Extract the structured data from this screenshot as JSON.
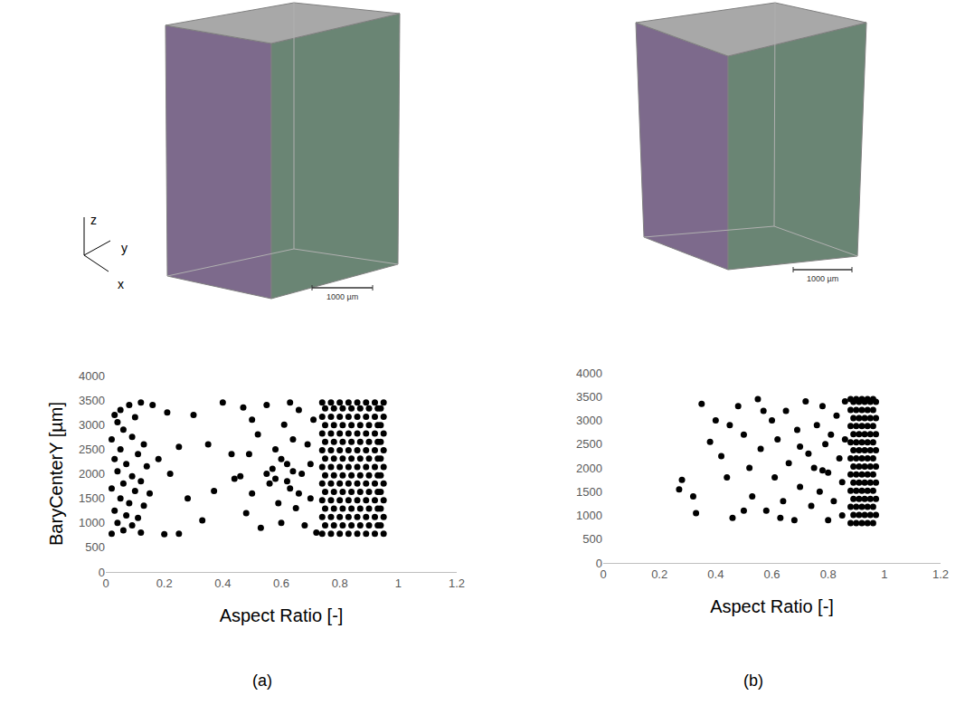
{
  "chart_data": [
    {
      "panel": "(a)",
      "type": "scatter",
      "x_label": "Aspect Ratio [-]",
      "y_label": "BaryCenterY [µm]",
      "x": [
        0.03,
        0.05,
        0.08,
        0.12,
        0.04,
        0.1,
        0.06,
        0.02,
        0.09,
        0.13,
        0.05,
        0.11,
        0.03,
        0.07,
        0.14,
        0.04,
        0.09,
        0.12,
        0.06,
        0.02,
        0.1,
        0.15,
        0.05,
        0.08,
        0.13,
        0.03,
        0.07,
        0.11,
        0.04,
        0.09,
        0.06,
        0.12,
        0.02,
        0.16,
        0.18,
        0.21,
        0.25,
        0.22,
        0.3,
        0.28,
        0.33,
        0.37,
        0.4,
        0.25,
        0.2,
        0.35,
        0.43,
        0.44,
        0.47,
        0.5,
        0.52,
        0.49,
        0.46,
        0.5,
        0.48,
        0.53,
        0.55,
        0.57,
        0.56,
        0.58,
        0.59,
        0.6,
        0.61,
        0.62,
        0.63,
        0.64,
        0.65,
        0.66,
        0.67,
        0.55,
        0.58,
        0.6,
        0.62,
        0.64,
        0.66,
        0.63,
        0.68,
        0.69,
        0.7,
        0.71,
        0.7,
        0.72,
        0.74,
        0.77,
        0.8,
        0.83,
        0.86,
        0.89,
        0.92,
        0.95,
        0.75,
        0.78,
        0.81,
        0.84,
        0.87,
        0.9,
        0.93,
        0.94,
        0.74,
        0.77,
        0.8,
        0.83,
        0.86,
        0.89,
        0.92,
        0.95,
        0.75,
        0.78,
        0.81,
        0.84,
        0.87,
        0.9,
        0.93,
        0.94,
        0.74,
        0.77,
        0.8,
        0.83,
        0.86,
        0.89,
        0.92,
        0.95,
        0.75,
        0.78,
        0.81,
        0.84,
        0.87,
        0.9,
        0.93,
        0.94,
        0.74,
        0.77,
        0.8,
        0.83,
        0.86,
        0.89,
        0.92,
        0.95,
        0.75,
        0.78,
        0.81,
        0.84,
        0.87,
        0.9,
        0.93,
        0.94,
        0.74,
        0.77,
        0.8,
        0.83,
        0.86,
        0.89,
        0.92,
        0.95,
        0.75,
        0.78,
        0.81,
        0.84,
        0.87,
        0.9,
        0.93,
        0.94,
        0.74,
        0.77,
        0.8,
        0.83,
        0.86,
        0.89,
        0.92,
        0.95,
        0.75,
        0.78,
        0.81,
        0.84,
        0.87,
        0.9,
        0.93,
        0.94,
        0.74,
        0.77,
        0.8,
        0.83,
        0.86,
        0.89,
        0.92,
        0.95,
        0.75,
        0.78,
        0.81,
        0.84,
        0.87,
        0.9,
        0.93,
        0.94,
        0.74,
        0.77,
        0.8,
        0.83,
        0.86,
        0.89,
        0.92,
        0.95,
        0.75,
        0.78,
        0.81,
        0.84,
        0.87,
        0.9,
        0.93,
        0.94,
        0.74,
        0.77,
        0.8,
        0.83,
        0.86,
        0.89,
        0.92,
        0.95
      ],
      "values": [
        3200,
        3300,
        3400,
        3450,
        3050,
        3150,
        2900,
        2700,
        2750,
        2600,
        2500,
        2400,
        2300,
        2200,
        2150,
        2050,
        1950,
        1850,
        1800,
        1700,
        1650,
        1600,
        1500,
        1400,
        1350,
        1250,
        1150,
        1100,
        1000,
        950,
        850,
        800,
        780,
        3400,
        2300,
        3250,
        2550,
        2000,
        3200,
        1500,
        1050,
        1650,
        3450,
        780,
        770,
        2600,
        2400,
        1900,
        3350,
        3100,
        2800,
        2400,
        1950,
        1600,
        1200,
        900,
        3400,
        2100,
        1800,
        2500,
        1400,
        1000,
        3000,
        2200,
        1700,
        2700,
        1300,
        3300,
        2000,
        2000,
        1900,
        2300,
        1850,
        2050,
        1600,
        3450,
        950,
        2600,
        1500,
        3100,
        2200,
        800,
        780,
        780,
        780,
        780,
        780,
        780,
        780,
        780,
        950,
        950,
        950,
        950,
        950,
        950,
        950,
        950,
        1120,
        1120,
        1120,
        1120,
        1120,
        1120,
        1120,
        1120,
        1290,
        1290,
        1290,
        1290,
        1290,
        1290,
        1290,
        1290,
        1460,
        1460,
        1460,
        1460,
        1460,
        1460,
        1460,
        1460,
        1630,
        1630,
        1630,
        1630,
        1630,
        1630,
        1630,
        1630,
        1800,
        1800,
        1800,
        1800,
        1800,
        1800,
        1800,
        1800,
        1970,
        1970,
        1970,
        1970,
        1970,
        1970,
        1970,
        1970,
        2140,
        2140,
        2140,
        2140,
        2140,
        2140,
        2140,
        2140,
        2310,
        2310,
        2310,
        2310,
        2310,
        2310,
        2310,
        2310,
        2480,
        2480,
        2480,
        2480,
        2480,
        2480,
        2480,
        2480,
        2650,
        2650,
        2650,
        2650,
        2650,
        2650,
        2650,
        2650,
        2820,
        2820,
        2820,
        2820,
        2820,
        2820,
        2820,
        2820,
        2990,
        2990,
        2990,
        2990,
        2990,
        2990,
        2990,
        2990,
        3160,
        3160,
        3160,
        3160,
        3160,
        3160,
        3160,
        3160,
        3330,
        3330,
        3330,
        3330,
        3330,
        3330,
        3330,
        3330,
        3450,
        3450,
        3450,
        3450,
        3450,
        3450,
        3450,
        3450
      ],
      "xlim": [
        0,
        1.2
      ],
      "xticks": [
        0,
        0.2,
        0.4,
        0.6,
        0.8,
        1,
        1.2
      ],
      "ylim": [
        0,
        4000
      ],
      "yticks": [
        0,
        500,
        1000,
        1500,
        2000,
        2500,
        3000,
        3500,
        4000
      ],
      "color": "#000000",
      "marker": "circle",
      "grid": false,
      "scale_bar": "1000 µm"
    },
    {
      "panel": "(b)",
      "type": "scatter",
      "x_label": "Aspect Ratio [-]",
      "x": [
        0.27,
        0.28,
        0.32,
        0.33,
        0.35,
        0.38,
        0.4,
        0.42,
        0.44,
        0.46,
        0.48,
        0.5,
        0.52,
        0.53,
        0.55,
        0.56,
        0.58,
        0.6,
        0.61,
        0.62,
        0.64,
        0.65,
        0.66,
        0.68,
        0.69,
        0.7,
        0.72,
        0.73,
        0.74,
        0.75,
        0.76,
        0.77,
        0.78,
        0.79,
        0.8,
        0.8,
        0.81,
        0.82,
        0.83,
        0.84,
        0.85,
        0.85,
        0.86,
        0.86,
        0.5,
        0.45,
        0.57,
        0.63,
        0.7,
        0.78,
        0.88,
        0.9,
        0.92,
        0.94,
        0.96,
        0.89,
        0.91,
        0.93,
        0.95,
        0.97,
        0.88,
        0.9,
        0.92,
        0.94,
        0.96,
        0.89,
        0.91,
        0.93,
        0.95,
        0.97,
        0.88,
        0.9,
        0.92,
        0.94,
        0.96,
        0.89,
        0.91,
        0.93,
        0.95,
        0.97,
        0.88,
        0.9,
        0.92,
        0.94,
        0.96,
        0.89,
        0.91,
        0.93,
        0.95,
        0.97,
        0.88,
        0.9,
        0.92,
        0.94,
        0.96,
        0.89,
        0.91,
        0.93,
        0.95,
        0.97,
        0.88,
        0.9,
        0.92,
        0.94,
        0.96,
        0.89,
        0.91,
        0.93,
        0.95,
        0.97,
        0.88,
        0.9,
        0.92,
        0.94,
        0.96,
        0.89,
        0.91,
        0.93,
        0.95,
        0.97,
        0.88,
        0.9,
        0.92,
        0.94,
        0.96,
        0.89,
        0.91,
        0.93,
        0.95,
        0.97,
        0.88,
        0.9,
        0.92,
        0.94,
        0.96
      ],
      "values": [
        1550,
        1750,
        1400,
        1050,
        3350,
        2550,
        3000,
        2250,
        1800,
        950,
        3300,
        2700,
        2000,
        1400,
        3450,
        2400,
        1100,
        3000,
        1800,
        2600,
        1300,
        3200,
        2100,
        900,
        2800,
        1600,
        3400,
        2300,
        1200,
        2000,
        2900,
        1500,
        3300,
        2500,
        900,
        1900,
        2700,
        1300,
        3100,
        2200,
        1700,
        1000,
        2600,
        3400,
        1100,
        2900,
        3200,
        950,
        2450,
        1950,
        840,
        840,
        840,
        840,
        840,
        1010,
        1010,
        1010,
        1010,
        1010,
        1180,
        1180,
        1180,
        1180,
        1180,
        1350,
        1350,
        1350,
        1350,
        1350,
        1520,
        1520,
        1520,
        1520,
        1520,
        1690,
        1690,
        1690,
        1690,
        1690,
        1860,
        1860,
        1860,
        1860,
        1860,
        2030,
        2030,
        2030,
        2030,
        2030,
        2200,
        2200,
        2200,
        2200,
        2200,
        2370,
        2370,
        2370,
        2370,
        2370,
        2540,
        2540,
        2540,
        2540,
        2540,
        2710,
        2710,
        2710,
        2710,
        2710,
        2880,
        2880,
        2880,
        2880,
        2880,
        3050,
        3050,
        3050,
        3050,
        3050,
        3220,
        3220,
        3220,
        3220,
        3220,
        3390,
        3390,
        3390,
        3390,
        3390,
        3450,
        3450,
        3450,
        3450,
        3450
      ],
      "xlim": [
        0,
        1.2
      ],
      "xticks": [
        0,
        0.2,
        0.4,
        0.6,
        0.8,
        1,
        1.2
      ],
      "ylim": [
        0,
        4000
      ],
      "yticks": [
        0,
        500,
        1000,
        1500,
        2000,
        2500,
        3000,
        3500,
        4000
      ],
      "color": "#000000",
      "marker": "circle",
      "grid": false,
      "scale_bar": "1000 µm"
    }
  ],
  "axes_triad": [
    "z",
    "y",
    "x"
  ]
}
